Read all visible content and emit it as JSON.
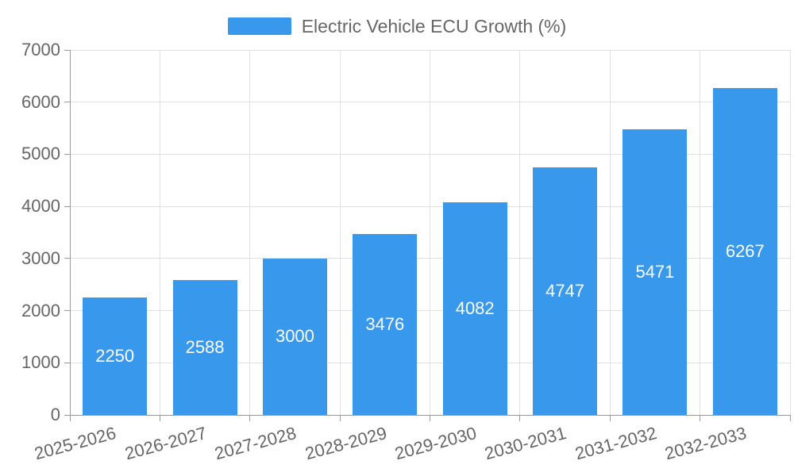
{
  "legend": {
    "label": "Electric Vehicle ECU Growth (%)"
  },
  "chart_data": {
    "type": "bar",
    "title": "Electric Vehicle ECU Growth (%)",
    "categories": [
      "2025-2026",
      "2026-2027",
      "2027-2028",
      "2028-2029",
      "2029-2030",
      "2030-2031",
      "2031-2032",
      "2032-2033"
    ],
    "values": [
      2250,
      2588,
      3000,
      3476,
      4082,
      4747,
      5471,
      6267
    ],
    "value_labels": [
      "2250",
      "2588",
      "3000",
      "3476",
      "4082",
      "4747",
      "5471",
      "6267"
    ],
    "xlabel": "",
    "ylabel": "",
    "ylim": [
      0,
      7000
    ],
    "y_ticks": [
      0,
      1000,
      2000,
      3000,
      4000,
      5000,
      6000,
      7000
    ],
    "grid": true,
    "legend_position": "top",
    "x_label_rotation_deg": -15
  },
  "colors": {
    "bar": "#3899ec",
    "axis_label": "#666666",
    "grid_line": "#e0e0e0",
    "axis_line": "#999999",
    "value_label": "#ffffff",
    "background": "#ffffff"
  }
}
